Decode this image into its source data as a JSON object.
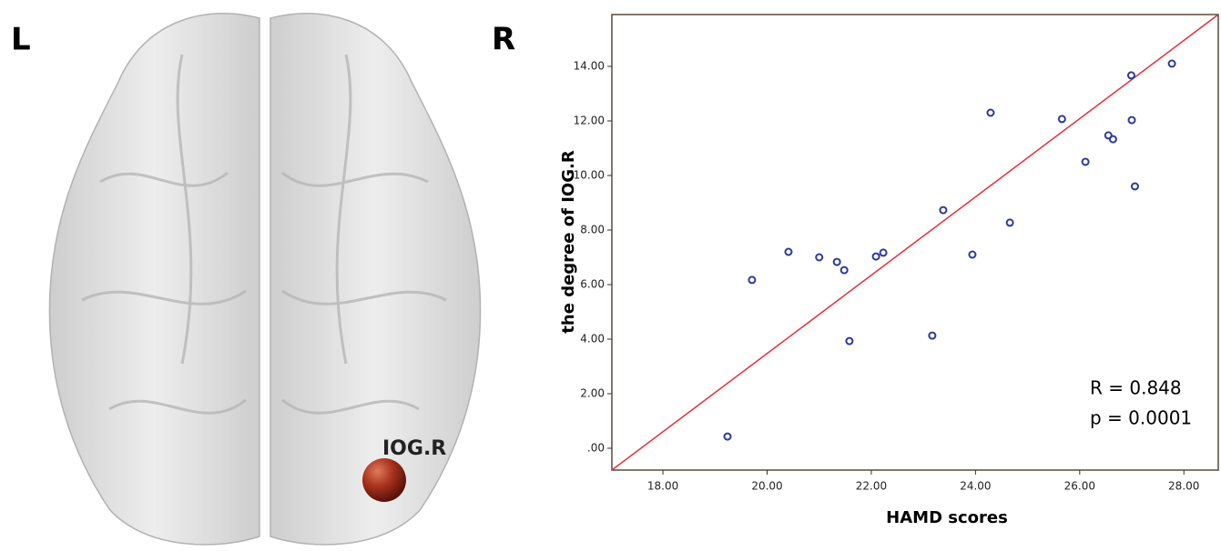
{
  "figure": {
    "left_label": "L",
    "right_label": "R",
    "node_label": "IOG.R"
  },
  "chart_data": {
    "type": "scatter",
    "x_label": "HAMD scores",
    "y_label": "the degree of IOG.R",
    "annotations": [
      "R = 0.848",
      "p = 0.0001"
    ],
    "color": "#2b3a9a",
    "line_color": "#e0303a",
    "x": [
      19.24,
      19.71,
      20.41,
      21.0,
      21.34,
      21.48,
      21.58,
      22.09,
      22.23,
      23.17,
      23.38,
      23.94,
      24.29,
      24.66,
      25.66,
      26.11,
      26.55,
      26.64,
      26.99,
      27.0,
      27.06,
      27.77
    ],
    "values": [
      0.43,
      6.17,
      7.2,
      7.0,
      6.83,
      6.53,
      3.93,
      7.03,
      7.17,
      4.13,
      8.73,
      7.1,
      12.3,
      8.27,
      12.07,
      10.5,
      11.47,
      11.33,
      13.67,
      12.03,
      9.6,
      14.1
    ],
    "fit_line": {
      "x": [
        17.02,
        28.66
      ],
      "y": [
        -0.8,
        15.9
      ]
    },
    "xlim": [
      17.02,
      28.66
    ],
    "ylim": [
      -0.8,
      15.9
    ],
    "xticks": [
      {
        "value": 18,
        "label": "18.00"
      },
      {
        "value": 20,
        "label": "20.00"
      },
      {
        "value": 22,
        "label": "22.00"
      },
      {
        "value": 24,
        "label": "24.00"
      },
      {
        "value": 26,
        "label": "26.00"
      },
      {
        "value": 28,
        "label": "28.00"
      }
    ],
    "yticks": [
      {
        "value": 0,
        "label": ".00"
      },
      {
        "value": 2,
        "label": "2.00"
      },
      {
        "value": 4,
        "label": "4.00"
      },
      {
        "value": 6,
        "label": "6.00"
      },
      {
        "value": 8,
        "label": "8.00"
      },
      {
        "value": 10,
        "label": "10.00"
      },
      {
        "value": 12,
        "label": "12.00"
      },
      {
        "value": 14,
        "label": "14.00"
      }
    ],
    "grid": false
  }
}
